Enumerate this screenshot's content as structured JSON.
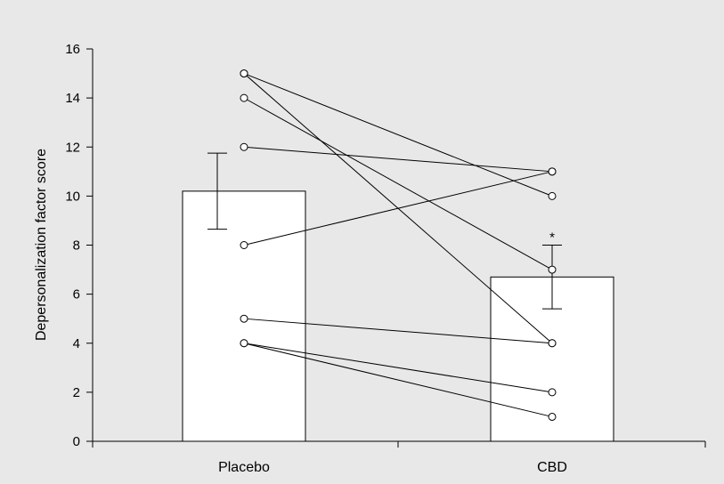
{
  "chart_data": {
    "type": "bar",
    "title": "",
    "xlabel": "",
    "ylabel": "Depersonalization factor score",
    "ylim": [
      0,
      16
    ],
    "yticks": [
      0,
      2,
      4,
      6,
      8,
      10,
      12,
      14,
      16
    ],
    "categories": [
      "Placebo",
      "CBD"
    ],
    "values": [
      10.2,
      6.7
    ],
    "error": [
      1.55,
      1.3
    ],
    "significance": [
      {
        "category": "CBD",
        "label": "*"
      }
    ],
    "paired_points": [
      {
        "placebo": 15,
        "cbd": 10
      },
      {
        "placebo": 15,
        "cbd": 4
      },
      {
        "placebo": 14,
        "cbd": 7
      },
      {
        "placebo": 12,
        "cbd": 11
      },
      {
        "placebo": 8,
        "cbd": 11
      },
      {
        "placebo": 5,
        "cbd": 4
      },
      {
        "placebo": 4,
        "cbd": 2
      },
      {
        "placebo": 4,
        "cbd": 1
      }
    ],
    "colors": {
      "bar_fill": "#ffffff",
      "stroke": "#000000",
      "background": "#e8e8e8"
    }
  }
}
